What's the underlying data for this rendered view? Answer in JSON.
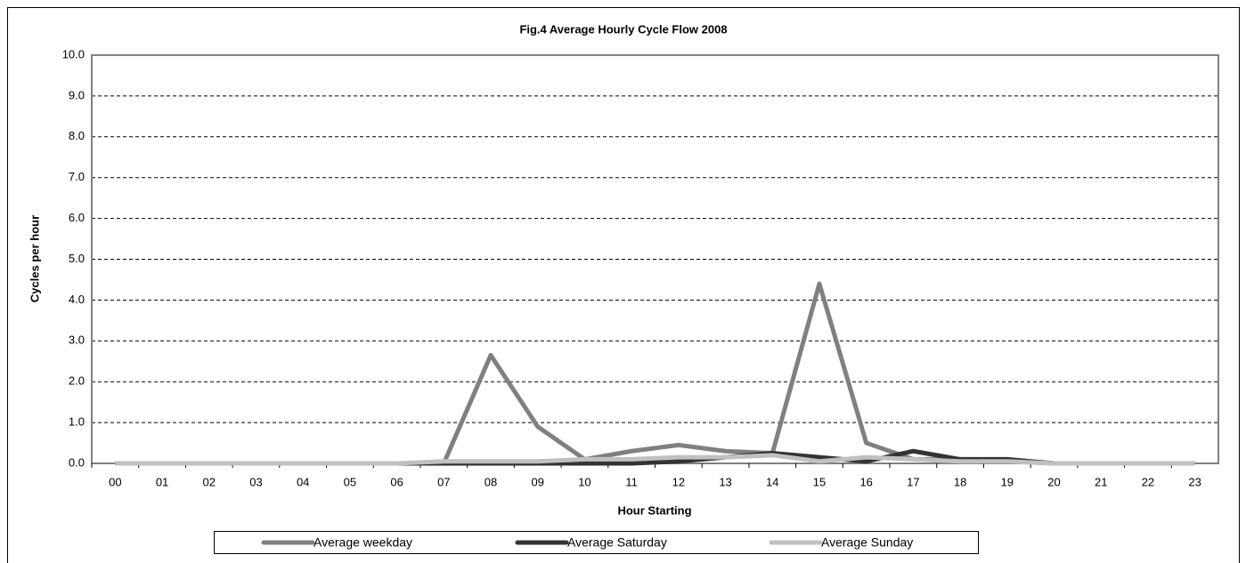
{
  "chart_data": {
    "type": "line",
    "title": "Fig.4 Average Hourly Cycle Flow 2008",
    "xlabel": "Hour Starting",
    "ylabel": "Cycles per hour",
    "categories": [
      "00",
      "01",
      "02",
      "03",
      "04",
      "05",
      "06",
      "07",
      "08",
      "09",
      "10",
      "11",
      "12",
      "13",
      "14",
      "15",
      "16",
      "17",
      "18",
      "19",
      "20",
      "21",
      "22",
      "23"
    ],
    "series": [
      {
        "name": "Average weekday",
        "color": "#808080",
        "values": [
          0,
          0,
          0,
          0,
          0,
          0,
          0,
          0,
          2.65,
          0.9,
          0.1,
          0.3,
          0.45,
          0.3,
          0.25,
          4.4,
          0.5,
          0.1,
          0.1,
          0.05,
          0,
          0,
          0,
          0
        ]
      },
      {
        "name": "Average Saturday",
        "color": "#333333",
        "values": [
          0,
          0,
          0,
          0,
          0,
          0,
          0,
          0,
          0,
          0,
          0,
          0,
          0.05,
          0.15,
          0.25,
          0.15,
          0.05,
          0.3,
          0.1,
          0.1,
          0,
          0,
          0,
          0
        ]
      },
      {
        "name": "Average Sunday",
        "color": "#c0c0c0",
        "values": [
          0,
          0,
          0,
          0,
          0,
          0,
          0,
          0.05,
          0.05,
          0.05,
          0.1,
          0.1,
          0.15,
          0.15,
          0.2,
          0.05,
          0.15,
          0.1,
          0.05,
          0.05,
          0,
          0,
          0,
          0
        ]
      }
    ],
    "ylim": [
      0,
      10
    ],
    "yticks": [
      {
        "value": 0,
        "label": "0.0"
      },
      {
        "value": 1,
        "label": "1.0"
      },
      {
        "value": 2,
        "label": "2.0"
      },
      {
        "value": 3,
        "label": "3.0"
      },
      {
        "value": 4,
        "label": "4.0"
      },
      {
        "value": 5,
        "label": "5.0"
      },
      {
        "value": 6,
        "label": "6.0"
      },
      {
        "value": 7,
        "label": "7.0"
      },
      {
        "value": 8,
        "label": "8.0"
      },
      {
        "value": 9,
        "label": "9.0"
      },
      {
        "value": 10,
        "label": "10.0"
      }
    ],
    "grid": true,
    "legend": "bottom"
  }
}
